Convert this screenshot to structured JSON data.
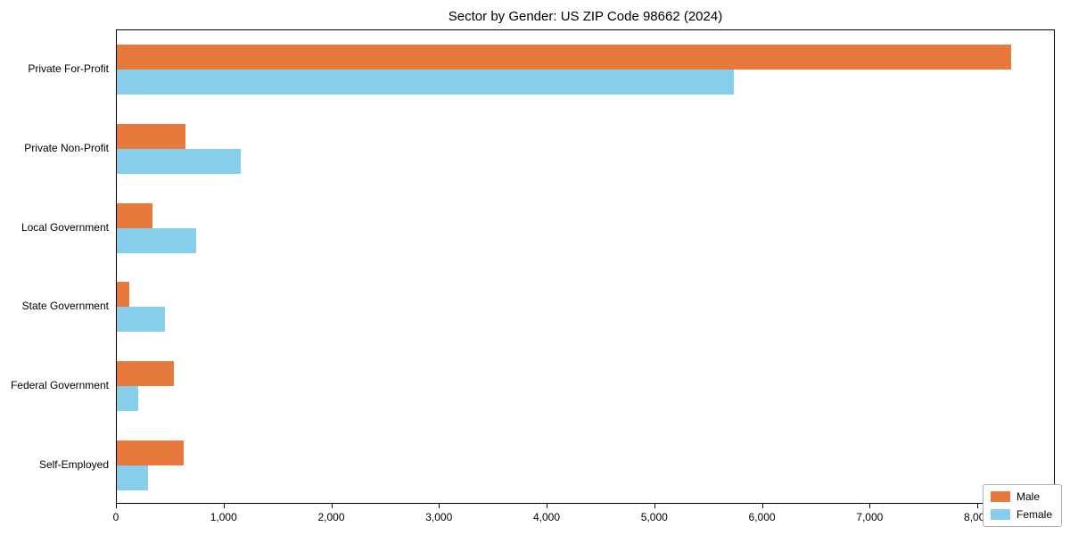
{
  "chart_data": {
    "type": "bar",
    "orientation": "horizontal",
    "title": "Sector by Gender: US ZIP Code 98662 (2024)",
    "categories": [
      "Private For-Profit",
      "Private Non-Profit",
      "Local Government",
      "State Government",
      "Federal Government",
      "Self-Employed"
    ],
    "series": [
      {
        "name": "Male",
        "color": "#e8793d",
        "values": [
          8310,
          640,
          330,
          120,
          530,
          620
        ]
      },
      {
        "name": "Female",
        "color": "#87ceeb",
        "values": [
          5730,
          1150,
          740,
          450,
          200,
          290
        ]
      }
    ],
    "xlim": [
      0,
      8720
    ],
    "x_ticks": [
      0,
      1000,
      2000,
      3000,
      4000,
      5000,
      6000,
      7000,
      8000
    ],
    "x_tick_labels": [
      "0",
      "1,000",
      "2,000",
      "3,000",
      "4,000",
      "5,000",
      "6,000",
      "7,000",
      "8,000"
    ],
    "legend": {
      "position": "lower right",
      "entries": [
        "Male",
        "Female"
      ]
    },
    "grid": false,
    "xlabel": "",
    "ylabel": ""
  }
}
